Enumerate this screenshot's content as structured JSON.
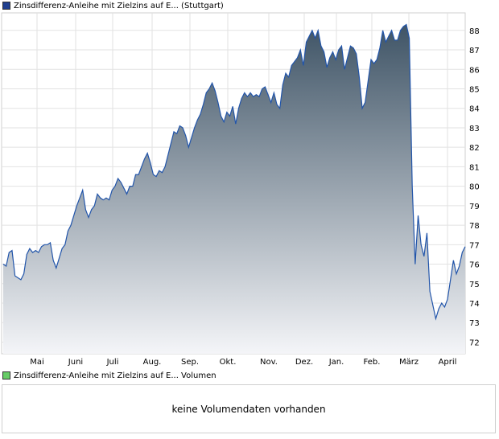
{
  "price_panel": {
    "legend_label": "Zinsdifferenz-Anleihe mit Zielzins auf E... (Stuttgart)",
    "legend_color": "#1f3f8f"
  },
  "volume_panel": {
    "legend_label": "Zinsdifferenz-Anleihe mit Zielzins auf E... Volumen",
    "legend_color": "#66cc66",
    "empty_message": "keine Volumendaten vorhanden"
  },
  "chart_data": {
    "type": "area",
    "x_labels": [
      "Mai",
      "Juni",
      "Juli",
      "Aug.",
      "Sep.",
      "Okt.",
      "Nov.",
      "Dez.",
      "Jan.",
      "Feb.",
      "März",
      "April"
    ],
    "y_ticks": [
      72,
      73,
      74,
      75,
      76,
      77,
      78,
      79,
      80,
      81,
      82,
      83,
      84,
      85,
      86,
      87,
      88
    ],
    "ylim": [
      71.4,
      88.9
    ],
    "line_color": "#2255aa",
    "fill_top_color": "#3f5466",
    "fill_bottom_color": "#f4f5f8",
    "grid": true,
    "series": [
      {
        "values": [
          76.0,
          75.9,
          76.6,
          76.7,
          75.4,
          75.3,
          75.2,
          75.5,
          76.5,
          76.8,
          76.6,
          76.7,
          76.6,
          76.9,
          77.0,
          77.0,
          77.1,
          76.2,
          75.8,
          76.3,
          76.8,
          77.0,
          77.7,
          78.0,
          78.5,
          79.0,
          79.4,
          79.8,
          78.8,
          78.4,
          78.8,
          79.0,
          79.6,
          79.4,
          79.3,
          79.4,
          79.3,
          79.8,
          80.0,
          80.4,
          80.2,
          79.9,
          79.6,
          80.0,
          80.0,
          80.6,
          80.6,
          81.0,
          81.4,
          81.7,
          81.2,
          80.6,
          80.5,
          80.8,
          80.7,
          81.0,
          81.6,
          82.2,
          82.8,
          82.7,
          83.1,
          83.0,
          82.6,
          82.0,
          82.5,
          83.0,
          83.4,
          83.7,
          84.2,
          84.8,
          85.0,
          85.3,
          84.9,
          84.3,
          83.6,
          83.3,
          83.8,
          83.6,
          84.1,
          83.2,
          84.0,
          84.5,
          84.8,
          84.6,
          84.8,
          84.6,
          84.7,
          84.6,
          85.0,
          85.1,
          84.7,
          84.3,
          84.8,
          84.2,
          84.0,
          85.2,
          85.8,
          85.6,
          86.2,
          86.4,
          86.6,
          87.0,
          86.2,
          87.4,
          87.7,
          88.0,
          87.6,
          88.0,
          87.2,
          86.9,
          86.1,
          86.6,
          86.9,
          86.5,
          87.0,
          87.2,
          86.0,
          86.6,
          87.2,
          87.1,
          86.8,
          85.6,
          84.0,
          84.3,
          85.4,
          86.5,
          86.3,
          86.5,
          87.1,
          88.0,
          87.4,
          87.7,
          88.0,
          87.5,
          87.5,
          88.0,
          88.2,
          88.3,
          87.6,
          80.0,
          76.0,
          78.5,
          77.0,
          76.4,
          77.6,
          74.6,
          73.9,
          73.2,
          73.7,
          74.0,
          73.8,
          74.2,
          75.2,
          76.2,
          75.5,
          75.9,
          76.6,
          76.9
        ]
      }
    ]
  }
}
